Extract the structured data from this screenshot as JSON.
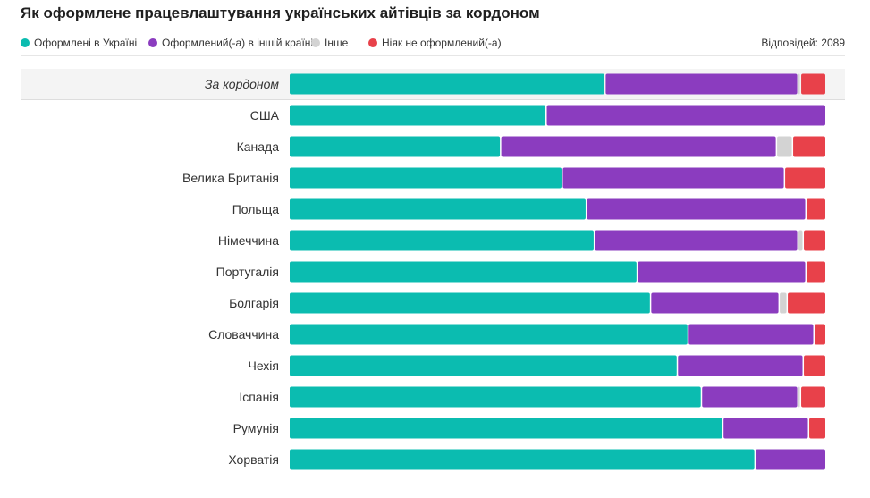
{
  "title": "Як оформлене працевлаштування українських айтівців за кордоном",
  "responses": "Відповідей: 2089",
  "chart_data": {
    "type": "bar",
    "orientation": "horizontal",
    "stacked": true,
    "normalized_percent": true,
    "title": "Як оформлене працевлаштування українських айтівців за кордоном",
    "categories": [
      "За кордоном",
      "США",
      "Канада",
      "Велика Британія",
      "Польща",
      "Німеччина",
      "Португалія",
      "Болгарія",
      "Словаччина",
      "Чехія",
      "Іспанія",
      "Румунія",
      "Хорватія"
    ],
    "highlighted_category": "За кордоном",
    "series": [
      {
        "name": "Оформлені в Україні",
        "color": "#0bbcb0",
        "values": [
          59,
          48,
          39.5,
          51,
          55.5,
          57,
          65,
          67.5,
          74.5,
          72.5,
          77,
          81,
          87
        ]
      },
      {
        "name": "Оформлений(-а) в іншій країні",
        "color": "#8b3cbf",
        "values": [
          36,
          52,
          51.5,
          41.5,
          41,
          38,
          31.5,
          24,
          23.5,
          23.5,
          18,
          16,
          13
        ]
      },
      {
        "name": "Інше",
        "color": "#d3d3d3",
        "values": [
          0.5,
          0,
          3,
          0,
          0,
          1,
          0,
          1.5,
          0,
          0,
          0.5,
          0,
          0
        ]
      },
      {
        "name": "Ніяк не оформлений(-а)",
        "color": "#e8414a",
        "values": [
          4.5,
          0,
          6,
          7.5,
          3.5,
          4,
          3.5,
          7,
          2,
          4,
          4.5,
          3,
          0
        ]
      }
    ],
    "xlim": [
      0,
      100
    ],
    "grid": false,
    "legend_position": "top-left"
  }
}
